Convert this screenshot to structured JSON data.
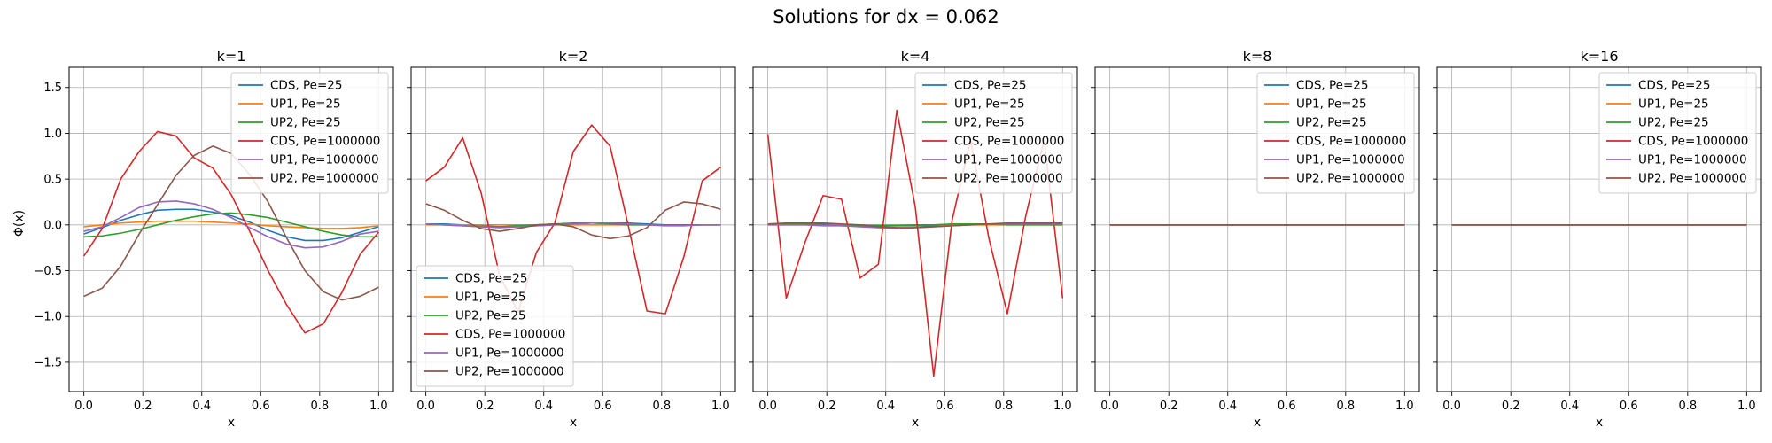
{
  "figure": {
    "suptitle": "Solutions for dx = 0.062",
    "xlabel": "x",
    "ylabel": "Φ(x)"
  },
  "chart_data": {
    "type": "line",
    "ylim": [
      -1.82,
      1.72
    ],
    "xlim": [
      -0.05,
      1.05
    ],
    "grid": true,
    "sharey": true,
    "x_ticks": [
      "0.0",
      "0.2",
      "0.4",
      "0.6",
      "0.8",
      "1.0"
    ],
    "x_tick_values": [
      0,
      0.2,
      0.4,
      0.6,
      0.8,
      1.0
    ],
    "y_ticks": [
      "−1.5",
      "−1.0",
      "−0.5",
      "0.0",
      "0.5",
      "1.0",
      "1.5"
    ],
    "y_tick_values": [
      -1.5,
      -1.0,
      -0.5,
      0.0,
      0.5,
      1.0,
      1.5
    ],
    "x": [
      0,
      0.0625,
      0.125,
      0.1875,
      0.25,
      0.3125,
      0.375,
      0.4375,
      0.5,
      0.5625,
      0.625,
      0.6875,
      0.75,
      0.8125,
      0.875,
      0.9375,
      1.0
    ],
    "series_colors": [
      "#1f77b4",
      "#ff7f0e",
      "#2ca02c",
      "#d62728",
      "#9467bd",
      "#8c564b"
    ],
    "panels": [
      {
        "title": "k=1",
        "legend_position": "upper right",
        "series": [
          {
            "name": "CDS, Pe=25",
            "values": [
              -0.1,
              -0.03,
              0.05,
              0.11,
              0.16,
              0.17,
              0.17,
              0.14,
              0.1,
              0.03,
              -0.06,
              -0.13,
              -0.17,
              -0.17,
              -0.14,
              -0.08,
              -0.02
            ]
          },
          {
            "name": "UP1, Pe=25",
            "values": [
              -0.02,
              0.0,
              0.02,
              0.03,
              0.04,
              0.04,
              0.04,
              0.03,
              0.02,
              0.01,
              -0.01,
              -0.02,
              -0.03,
              -0.04,
              -0.04,
              -0.03,
              -0.01
            ]
          },
          {
            "name": "UP2, Pe=25",
            "values": [
              -0.13,
              -0.12,
              -0.09,
              -0.05,
              0.0,
              0.05,
              0.09,
              0.12,
              0.13,
              0.11,
              0.08,
              0.03,
              -0.02,
              -0.07,
              -0.11,
              -0.13,
              -0.13
            ]
          },
          {
            "name": "CDS, Pe=1000000",
            "values": [
              -0.34,
              -0.04,
              0.5,
              0.8,
              1.02,
              0.97,
              0.73,
              0.62,
              0.33,
              -0.07,
              -0.5,
              -0.87,
              -1.18,
              -1.08,
              -0.74,
              -0.32,
              -0.08
            ]
          },
          {
            "name": "UP1, Pe=1000000",
            "values": [
              -0.07,
              -0.02,
              0.08,
              0.19,
              0.25,
              0.26,
              0.23,
              0.17,
              0.08,
              -0.03,
              -0.13,
              -0.21,
              -0.25,
              -0.24,
              -0.18,
              -0.1,
              -0.07
            ]
          },
          {
            "name": "UP2, Pe=1000000",
            "values": [
              -0.78,
              -0.69,
              -0.45,
              -0.1,
              0.22,
              0.54,
              0.76,
              0.86,
              0.78,
              0.55,
              0.25,
              -0.14,
              -0.5,
              -0.73,
              -0.82,
              -0.78,
              -0.68
            ]
          }
        ]
      },
      {
        "title": "k=2",
        "legend_position": "lower left",
        "series": [
          {
            "name": "CDS, Pe=25",
            "values": [
              0.01,
              0.01,
              0.0,
              -0.01,
              -0.02,
              -0.02,
              -0.01,
              0.0,
              0.01,
              0.02,
              0.02,
              0.02,
              0.01,
              0.0,
              0.0,
              0.0,
              0.0
            ]
          },
          {
            "name": "UP1, Pe=25",
            "values": [
              0.0,
              0.0,
              0.0,
              0.0,
              0.0,
              0.0,
              0.0,
              0.0,
              0.0,
              0.0,
              0.0,
              0.0,
              0.0,
              0.0,
              0.0,
              0.0,
              0.0
            ]
          },
          {
            "name": "UP2, Pe=25",
            "values": [
              0.01,
              0.0,
              -0.01,
              -0.02,
              -0.02,
              -0.01,
              0.0,
              0.01,
              0.02,
              0.02,
              0.01,
              0.0,
              0.0,
              0.0,
              0.0,
              0.0,
              0.0
            ]
          },
          {
            "name": "CDS, Pe=1000000",
            "values": [
              0.48,
              0.63,
              0.95,
              0.35,
              -0.55,
              -0.95,
              -0.3,
              0.02,
              0.8,
              1.09,
              0.86,
              -0.02,
              -0.94,
              -0.97,
              -0.35,
              0.48,
              0.63
            ]
          },
          {
            "name": "UP1, Pe=1000000",
            "values": [
              0.01,
              0.0,
              -0.01,
              -0.02,
              -0.03,
              -0.02,
              -0.01,
              0.0,
              0.01,
              0.02,
              0.02,
              0.01,
              0.0,
              -0.01,
              -0.01,
              0.0,
              0.0
            ]
          },
          {
            "name": "UP2, Pe=1000000",
            "values": [
              0.23,
              0.16,
              0.05,
              -0.04,
              -0.07,
              -0.04,
              0.0,
              0.01,
              -0.02,
              -0.11,
              -0.15,
              -0.12,
              -0.03,
              0.16,
              0.25,
              0.23,
              0.17
            ]
          }
        ]
      },
      {
        "title": "k=4",
        "legend_position": "upper right",
        "series": [
          {
            "name": "CDS, Pe=25",
            "values": [
              0.01,
              0.01,
              0.01,
              0.01,
              0.0,
              -0.01,
              -0.01,
              -0.01,
              -0.01,
              -0.01,
              0.0,
              0.01,
              0.01,
              0.01,
              0.01,
              0.01,
              0.01
            ]
          },
          {
            "name": "UP1, Pe=25",
            "values": [
              0.0,
              0.0,
              0.0,
              0.0,
              0.0,
              0.0,
              0.0,
              0.0,
              0.0,
              0.0,
              0.0,
              0.0,
              0.0,
              0.0,
              0.0,
              0.0,
              0.0
            ]
          },
          {
            "name": "UP2, Pe=25",
            "values": [
              0.01,
              0.01,
              0.01,
              0.0,
              -0.01,
              -0.01,
              -0.01,
              -0.01,
              0.0,
              0.0,
              0.01,
              0.01,
              0.01,
              0.0,
              0.0,
              0.0,
              0.0
            ]
          },
          {
            "name": "CDS, Pe=1000000",
            "values": [
              0.99,
              -0.8,
              -0.2,
              0.32,
              0.28,
              -0.58,
              -0.43,
              1.25,
              0.2,
              -1.65,
              0.05,
              0.93,
              -0.15,
              -0.97,
              0.1,
              0.93,
              -0.8
            ]
          },
          {
            "name": "UP1, Pe=1000000",
            "values": [
              0.0,
              0.0,
              0.0,
              -0.01,
              -0.01,
              -0.02,
              -0.03,
              -0.04,
              -0.03,
              -0.02,
              -0.01,
              0.0,
              0.01,
              0.01,
              0.01,
              0.01,
              0.01
            ]
          },
          {
            "name": "UP2, Pe=1000000",
            "values": [
              0.01,
              0.02,
              0.02,
              0.02,
              0.01,
              0.0,
              -0.02,
              -0.03,
              -0.03,
              -0.02,
              -0.01,
              0.0,
              0.01,
              0.02,
              0.02,
              0.02,
              0.02
            ]
          }
        ]
      },
      {
        "title": "k=8",
        "legend_position": "upper right",
        "series": [
          {
            "name": "CDS, Pe=25",
            "values": [
              0,
              0,
              0,
              0,
              0,
              0,
              0,
              0,
              0,
              0,
              0,
              0,
              0,
              0,
              0,
              0,
              0
            ]
          },
          {
            "name": "UP1, Pe=25",
            "values": [
              0,
              0,
              0,
              0,
              0,
              0,
              0,
              0,
              0,
              0,
              0,
              0,
              0,
              0,
              0,
              0,
              0
            ]
          },
          {
            "name": "UP2, Pe=25",
            "values": [
              0,
              0,
              0,
              0,
              0,
              0,
              0,
              0,
              0,
              0,
              0,
              0,
              0,
              0,
              0,
              0,
              0
            ]
          },
          {
            "name": "CDS, Pe=1000000",
            "values": [
              0,
              0,
              0,
              0,
              0,
              0,
              0,
              0,
              0,
              0,
              0,
              0,
              0,
              0,
              0,
              0,
              0
            ]
          },
          {
            "name": "UP1, Pe=1000000",
            "values": [
              0,
              0,
              0,
              0,
              0,
              0,
              0,
              0,
              0,
              0,
              0,
              0,
              0,
              0,
              0,
              0,
              0
            ]
          },
          {
            "name": "UP2, Pe=1000000",
            "values": [
              0,
              0,
              0,
              0,
              0,
              0,
              0,
              0,
              0,
              0,
              0,
              0,
              0,
              0,
              0,
              0,
              0
            ]
          }
        ]
      },
      {
        "title": "k=16",
        "legend_position": "upper right",
        "series": [
          {
            "name": "CDS, Pe=25",
            "values": [
              0,
              0,
              0,
              0,
              0,
              0,
              0,
              0,
              0,
              0,
              0,
              0,
              0,
              0,
              0,
              0,
              0
            ]
          },
          {
            "name": "UP1, Pe=25",
            "values": [
              0,
              0,
              0,
              0,
              0,
              0,
              0,
              0,
              0,
              0,
              0,
              0,
              0,
              0,
              0,
              0,
              0
            ]
          },
          {
            "name": "UP2, Pe=25",
            "values": [
              0,
              0,
              0,
              0,
              0,
              0,
              0,
              0,
              0,
              0,
              0,
              0,
              0,
              0,
              0,
              0,
              0
            ]
          },
          {
            "name": "CDS, Pe=1000000",
            "values": [
              0,
              0,
              0,
              0,
              0,
              0,
              0,
              0,
              0,
              0,
              0,
              0,
              0,
              0,
              0,
              0,
              0
            ]
          },
          {
            "name": "UP1, Pe=1000000",
            "values": [
              0,
              0,
              0,
              0,
              0,
              0,
              0,
              0,
              0,
              0,
              0,
              0,
              0,
              0,
              0,
              0,
              0
            ]
          },
          {
            "name": "UP2, Pe=1000000",
            "values": [
              0,
              0,
              0,
              0,
              0,
              0,
              0,
              0,
              0,
              0,
              0,
              0,
              0,
              0,
              0,
              0,
              0
            ]
          }
        ]
      }
    ]
  }
}
